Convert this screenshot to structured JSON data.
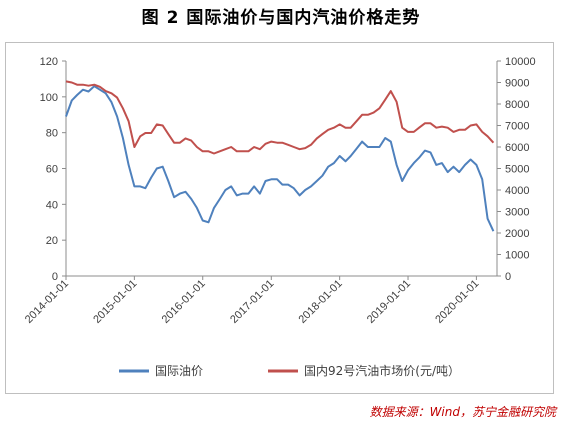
{
  "figure": {
    "title": "图 2 国际油价与国内汽油价格走势",
    "source": "数据来源：Wind，苏宁金融研究院"
  },
  "chart_data": {
    "type": "line",
    "x_tick_labels": [
      "2014-01-01",
      "2015-01-01",
      "2016-01-01",
      "2017-01-01",
      "2018-01-01",
      "2019-01-01",
      "2020-01-01"
    ],
    "x_range": [
      "2014-01-01",
      "2020-04-20"
    ],
    "y_left": {
      "ticks": [
        0,
        20,
        40,
        60,
        80,
        100,
        120
      ],
      "range": [
        0,
        120
      ]
    },
    "y_right": {
      "ticks": [
        0,
        1000,
        2000,
        3000,
        4000,
        5000,
        6000,
        7000,
        8000,
        9000,
        10000
      ],
      "range": [
        0,
        10000
      ]
    },
    "grid": false,
    "legend_position": "bottom",
    "colors": {
      "intl": "#4f81bd",
      "dom": "#c0504d"
    },
    "series": [
      {
        "name": "国际油价",
        "axis": "left",
        "points": [
          [
            "2014-01-01",
            89
          ],
          [
            "2014-02-01",
            98
          ],
          [
            "2014-03-01",
            101
          ],
          [
            "2014-04-01",
            104
          ],
          [
            "2014-05-01",
            103
          ],
          [
            "2014-06-01",
            106
          ],
          [
            "2014-07-01",
            104
          ],
          [
            "2014-08-01",
            102
          ],
          [
            "2014-09-01",
            97
          ],
          [
            "2014-10-01",
            89
          ],
          [
            "2014-11-01",
            77
          ],
          [
            "2014-12-01",
            62
          ],
          [
            "2015-01-01",
            50
          ],
          [
            "2015-02-01",
            50
          ],
          [
            "2015-03-01",
            49
          ],
          [
            "2015-04-01",
            55
          ],
          [
            "2015-05-01",
            60
          ],
          [
            "2015-06-01",
            61
          ],
          [
            "2015-07-01",
            53
          ],
          [
            "2015-08-01",
            44
          ],
          [
            "2015-09-01",
            46
          ],
          [
            "2015-10-01",
            47
          ],
          [
            "2015-11-01",
            43
          ],
          [
            "2015-12-01",
            38
          ],
          [
            "2016-01-01",
            31
          ],
          [
            "2016-02-01",
            30
          ],
          [
            "2016-03-01",
            38
          ],
          [
            "2016-04-01",
            43
          ],
          [
            "2016-05-01",
            48
          ],
          [
            "2016-06-01",
            50
          ],
          [
            "2016-07-01",
            45
          ],
          [
            "2016-08-01",
            46
          ],
          [
            "2016-09-01",
            46
          ],
          [
            "2016-10-01",
            50
          ],
          [
            "2016-11-01",
            46
          ],
          [
            "2016-12-01",
            53
          ],
          [
            "2017-01-01",
            54
          ],
          [
            "2017-02-01",
            54
          ],
          [
            "2017-03-01",
            51
          ],
          [
            "2017-04-01",
            51
          ],
          [
            "2017-05-01",
            49
          ],
          [
            "2017-06-01",
            45
          ],
          [
            "2017-07-01",
            48
          ],
          [
            "2017-08-01",
            50
          ],
          [
            "2017-09-01",
            53
          ],
          [
            "2017-10-01",
            56
          ],
          [
            "2017-11-01",
            61
          ],
          [
            "2017-12-01",
            63
          ],
          [
            "2018-01-01",
            67
          ],
          [
            "2018-02-01",
            64
          ],
          [
            "2018-03-01",
            67
          ],
          [
            "2018-04-01",
            71
          ],
          [
            "2018-05-01",
            75
          ],
          [
            "2018-06-01",
            72
          ],
          [
            "2018-07-01",
            72
          ],
          [
            "2018-08-01",
            72
          ],
          [
            "2018-09-01",
            77
          ],
          [
            "2018-10-01",
            75
          ],
          [
            "2018-11-01",
            62
          ],
          [
            "2018-12-01",
            53
          ],
          [
            "2019-01-01",
            59
          ],
          [
            "2019-02-01",
            63
          ],
          [
            "2019-03-01",
            66
          ],
          [
            "2019-04-01",
            70
          ],
          [
            "2019-05-01",
            69
          ],
          [
            "2019-06-01",
            62
          ],
          [
            "2019-07-01",
            63
          ],
          [
            "2019-08-01",
            58
          ],
          [
            "2019-09-01",
            61
          ],
          [
            "2019-10-01",
            58
          ],
          [
            "2019-11-01",
            62
          ],
          [
            "2019-12-01",
            65
          ],
          [
            "2020-01-01",
            62
          ],
          [
            "2020-02-01",
            54
          ],
          [
            "2020-03-01",
            32
          ],
          [
            "2020-04-01",
            25
          ]
        ]
      },
      {
        "name": "国内92号汽油市场价(元/吨）",
        "axis": "right",
        "points": [
          [
            "2014-01-01",
            9050
          ],
          [
            "2014-02-01",
            9000
          ],
          [
            "2014-03-01",
            8900
          ],
          [
            "2014-04-01",
            8900
          ],
          [
            "2014-05-01",
            8850
          ],
          [
            "2014-06-01",
            8900
          ],
          [
            "2014-07-01",
            8800
          ],
          [
            "2014-08-01",
            8600
          ],
          [
            "2014-09-01",
            8500
          ],
          [
            "2014-10-01",
            8300
          ],
          [
            "2014-11-01",
            7800
          ],
          [
            "2014-12-01",
            7200
          ],
          [
            "2015-01-01",
            6000
          ],
          [
            "2015-02-01",
            6500
          ],
          [
            "2015-03-01",
            6650
          ],
          [
            "2015-04-01",
            6650
          ],
          [
            "2015-05-01",
            7050
          ],
          [
            "2015-06-01",
            7000
          ],
          [
            "2015-07-01",
            6600
          ],
          [
            "2015-08-01",
            6200
          ],
          [
            "2015-09-01",
            6200
          ],
          [
            "2015-10-01",
            6400
          ],
          [
            "2015-11-01",
            6300
          ],
          [
            "2015-12-01",
            6000
          ],
          [
            "2016-01-01",
            5800
          ],
          [
            "2016-02-01",
            5800
          ],
          [
            "2016-03-01",
            5700
          ],
          [
            "2016-04-01",
            5800
          ],
          [
            "2016-05-01",
            5900
          ],
          [
            "2016-06-01",
            6000
          ],
          [
            "2016-07-01",
            5800
          ],
          [
            "2016-08-01",
            5800
          ],
          [
            "2016-09-01",
            5800
          ],
          [
            "2016-10-01",
            6000
          ],
          [
            "2016-11-01",
            5900
          ],
          [
            "2016-12-01",
            6150
          ],
          [
            "2017-01-01",
            6250
          ],
          [
            "2017-02-01",
            6200
          ],
          [
            "2017-03-01",
            6200
          ],
          [
            "2017-04-01",
            6100
          ],
          [
            "2017-05-01",
            6000
          ],
          [
            "2017-06-01",
            5900
          ],
          [
            "2017-07-01",
            5950
          ],
          [
            "2017-08-01",
            6100
          ],
          [
            "2017-09-01",
            6400
          ],
          [
            "2017-10-01",
            6600
          ],
          [
            "2017-11-01",
            6800
          ],
          [
            "2017-12-01",
            6900
          ],
          [
            "2018-01-01",
            7050
          ],
          [
            "2018-02-01",
            6900
          ],
          [
            "2018-03-01",
            6900
          ],
          [
            "2018-04-01",
            7200
          ],
          [
            "2018-05-01",
            7500
          ],
          [
            "2018-06-01",
            7500
          ],
          [
            "2018-07-01",
            7600
          ],
          [
            "2018-08-01",
            7800
          ],
          [
            "2018-09-01",
            8200
          ],
          [
            "2018-10-01",
            8600
          ],
          [
            "2018-11-01",
            8100
          ],
          [
            "2018-12-01",
            6900
          ],
          [
            "2019-01-01",
            6700
          ],
          [
            "2019-02-01",
            6700
          ],
          [
            "2019-03-01",
            6900
          ],
          [
            "2019-04-01",
            7100
          ],
          [
            "2019-05-01",
            7100
          ],
          [
            "2019-06-01",
            6900
          ],
          [
            "2019-07-01",
            6950
          ],
          [
            "2019-08-01",
            6900
          ],
          [
            "2019-09-01",
            6700
          ],
          [
            "2019-10-01",
            6800
          ],
          [
            "2019-11-01",
            6800
          ],
          [
            "2019-12-01",
            7000
          ],
          [
            "2020-01-01",
            7050
          ],
          [
            "2020-02-01",
            6700
          ],
          [
            "2020-03-01",
            6500
          ],
          [
            "2020-04-01",
            6200
          ]
        ]
      }
    ]
  }
}
